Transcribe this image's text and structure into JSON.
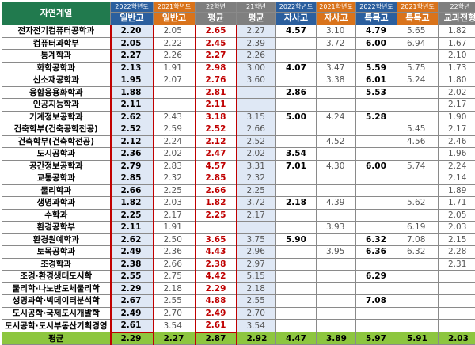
{
  "header": {
    "dept_label": "자연계열",
    "cols": [
      {
        "year": "2022학년도",
        "type": "일반고"
      },
      {
        "year": "2021학년도",
        "type": "일반고"
      },
      {
        "year": "22학년",
        "type": "평균"
      },
      {
        "year": "21학년",
        "type": "평균"
      },
      {
        "year": "2022학년도",
        "type": "자사고"
      },
      {
        "year": "2021학년도",
        "type": "자사고"
      },
      {
        "year": "2022학년도",
        "type": "특목고"
      },
      {
        "year": "2021학년도",
        "type": "특목고"
      },
      {
        "year": "22학년",
        "type": "교과전형"
      }
    ]
  },
  "rows": [
    {
      "name": "전자전기컴퓨터공학과",
      "v": [
        "2.20",
        "2.05",
        "2.65",
        "2.27",
        "4.57",
        "3.10",
        "4.79",
        "5.65",
        "1.82"
      ]
    },
    {
      "name": "컴퓨터과학부",
      "v": [
        "2.05",
        "2.22",
        "2.45",
        "2.39",
        "",
        "3.72",
        "6.00",
        "6.94",
        "1.67"
      ]
    },
    {
      "name": "통계학과",
      "v": [
        "2.27",
        "2.26",
        "2.27",
        "2.26",
        "",
        "",
        "",
        "",
        "2.10"
      ]
    },
    {
      "name": "화학공학과",
      "v": [
        "2.13",
        "1.91",
        "2.98",
        "3.00",
        "4.07",
        "3.47",
        "5.59",
        "5.75",
        "1.73"
      ]
    },
    {
      "name": "신소재공학과",
      "v": [
        "1.95",
        "2.07",
        "2.76",
        "3.60",
        "",
        "3.38",
        "6.01",
        "5.24",
        "1.80"
      ]
    },
    {
      "name": "융합응용화학과",
      "v": [
        "1.88",
        "",
        "2.81",
        "",
        "2.86",
        "",
        "5.53",
        "",
        "2.02"
      ]
    },
    {
      "name": "인공지능학과",
      "v": [
        "2.11",
        "",
        "2.11",
        "",
        "",
        "",
        "",
        "",
        "2.17"
      ]
    },
    {
      "name": "기계정보공학과",
      "v": [
        "2.62",
        "2.43",
        "3.18",
        "3.15",
        "5.00",
        "4.24",
        "5.28",
        "",
        "1.90"
      ]
    },
    {
      "name": "건축학부(건축공학전공)",
      "v": [
        "2.52",
        "2.59",
        "2.52",
        "2.66",
        "",
        "",
        "",
        "5.45",
        "2.17"
      ]
    },
    {
      "name": "건축학부(건축학전공)",
      "v": [
        "2.12",
        "2.24",
        "2.12",
        "2.52",
        "",
        "4.52",
        "",
        "4.56",
        "2.46"
      ]
    },
    {
      "name": "도시공학과",
      "v": [
        "2.36",
        "2.02",
        "2.47",
        "2.02",
        "3.54",
        "",
        "",
        "",
        "1.96"
      ]
    },
    {
      "name": "공간정보공학과",
      "v": [
        "2.79",
        "2.83",
        "4.57",
        "3.31",
        "7.01",
        "4.30",
        "6.00",
        "5.74",
        "2.24"
      ]
    },
    {
      "name": "교통공학과",
      "v": [
        "2.85",
        "2.32",
        "2.85",
        "2.32",
        "",
        "",
        "",
        "",
        "2.14"
      ]
    },
    {
      "name": "물리학과",
      "v": [
        "2.66",
        "2.25",
        "2.66",
        "2.25",
        "",
        "",
        "",
        "",
        "1.89"
      ]
    },
    {
      "name": "생명과학과",
      "v": [
        "1.82",
        "2.03",
        "1.82",
        "3.72",
        "2.18",
        "4.39",
        "",
        "5.62",
        "1.71"
      ]
    },
    {
      "name": "수학과",
      "v": [
        "2.25",
        "2.17",
        "2.25",
        "2.17",
        "",
        "",
        "",
        "",
        "2.05"
      ]
    },
    {
      "name": "환경공학부",
      "v": [
        "2.11",
        "1.91",
        "",
        "",
        "",
        "3.93",
        "",
        "6.19",
        "2.03"
      ]
    },
    {
      "name": "환경원예학과",
      "v": [
        "2.62",
        "2.50",
        "3.65",
        "3.75",
        "5.90",
        "",
        "6.32",
        "7.08",
        "2.15"
      ]
    },
    {
      "name": "토목공학과",
      "v": [
        "2.49",
        "2.36",
        "4.43",
        "2.96",
        "",
        "3.95",
        "6.36",
        "6.32",
        "2.28"
      ]
    },
    {
      "name": "조경학과",
      "v": [
        "2.38",
        "2.66",
        "2.38",
        "2.97",
        "",
        "",
        "",
        "",
        "2.31"
      ]
    },
    {
      "name": "조경·환경생태도시학",
      "v": [
        "2.55",
        "2.75",
        "4.42",
        "5.15",
        "",
        "",
        "6.29",
        "",
        ""
      ]
    },
    {
      "name": "물리학·나노반도체물리학",
      "v": [
        "2.29",
        "2.18",
        "2.29",
        "2.18",
        "",
        "",
        "",
        "",
        ""
      ]
    },
    {
      "name": "생명과학·빅데이터분석학",
      "v": [
        "2.67",
        "2.55",
        "4.88",
        "2.55",
        "",
        "",
        "7.08",
        "",
        ""
      ]
    },
    {
      "name": "도시공학·국제도시개발학",
      "v": [
        "2.49",
        "2.70",
        "2.49",
        "2.70",
        "",
        "",
        "",
        "",
        ""
      ]
    },
    {
      "name": "도시공학·도시부동산기획경영",
      "v": [
        "2.61",
        "3.54",
        "2.61",
        "3.54",
        "",
        "",
        "",
        "",
        ""
      ]
    }
  ],
  "average": {
    "name": "평균",
    "v": [
      "2.29",
      "2.27",
      "2.87",
      "2.92",
      "4.47",
      "3.89",
      "5.97",
      "5.91",
      "2.03"
    ]
  }
}
